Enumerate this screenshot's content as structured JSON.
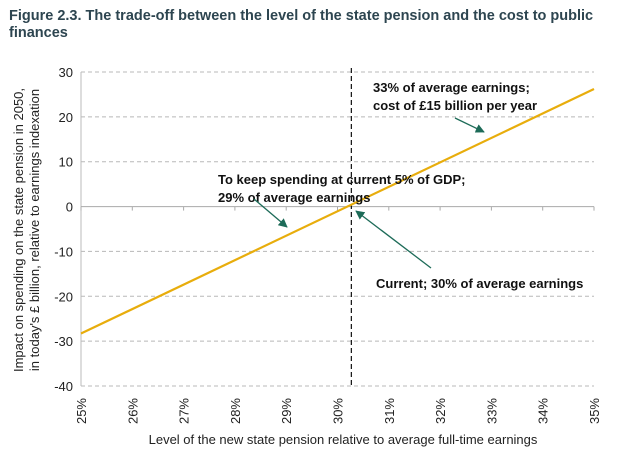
{
  "chart_data": {
    "type": "line",
    "title": "Figure 2.3. The trade-off between the level of the state pension and the cost to public finances",
    "xlabel": "Level of the new state pension relative to average full-time earnings",
    "ylabel": [
      "Impact on spending on the state pension in 2050,",
      "in today's £ billion, relative to earnings indexation"
    ],
    "xlim": [
      25,
      35
    ],
    "ylim": [
      -40,
      30
    ],
    "x_ticks": [
      "25%",
      "26%",
      "27%",
      "28%",
      "29%",
      "30%",
      "31%",
      "32%",
      "33%",
      "34%",
      "35%"
    ],
    "y_ticks": [
      "30",
      "20",
      "10",
      "0",
      "-10",
      "-20",
      "-30",
      "-40"
    ],
    "y_tick_values": [
      30,
      20,
      10,
      0,
      -10,
      -20,
      -30,
      -40
    ],
    "grid": true,
    "series": [
      {
        "name": "Impact on spending",
        "x": [
          25,
          35
        ],
        "y": [
          -28.3,
          26.2
        ],
        "color": "#e8ad0c"
      }
    ],
    "reference_line": {
      "x": 30.27,
      "style": "dashed"
    },
    "annotations": [
      {
        "lines": [
          "33% of average earnings;",
          "cost of £15 billion per year"
        ],
        "point": [
          33,
          15
        ]
      },
      {
        "lines": [
          "To keep spending at current 5% of GDP;",
          "29% of average earnings"
        ],
        "point": [
          29,
          -5.5
        ]
      },
      {
        "lines": [
          "Current; 30% of average earnings"
        ],
        "point": [
          30.27,
          0
        ]
      }
    ],
    "arrow_color": "#1d6b58"
  }
}
